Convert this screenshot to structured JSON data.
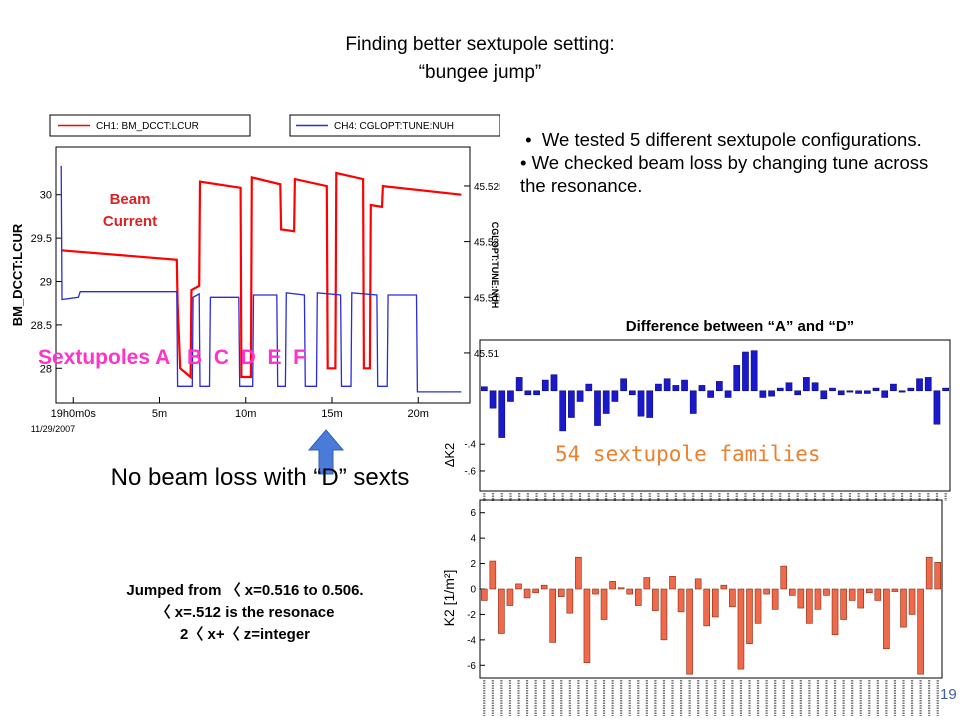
{
  "title_line1": "Finding better sextupole setting:",
  "title_line2": "“bungee jump”",
  "bullets": [
    "We tested 5 different sextupole configurations.",
    "We checked beam loss by changing tune across the resonance."
  ],
  "no_loss_text": "No beam loss with “D” sexts",
  "jump_lines": [
    "Jumped from 〈 x=0.516 to 0.506.",
    "〈 x=.512 is the resonace",
    "2〈 x+〈 z=integer"
  ],
  "sextupoles_label": "Sextupoles A   B  C  D  E  F",
  "families_label": "54 sextupole families",
  "diff_title": "Difference between “A” and “D”",
  "page_number": "19",
  "colors": {
    "ch1": "#ff0000",
    "ch4": "#2b2bd9",
    "bars_blue": "#1a1acc",
    "bars_orange": "#ee6a4a",
    "magenta": "#ff33cc",
    "orange_text": "#ee7f2d",
    "arrow": "#4a7bd8"
  },
  "chart_data": [
    {
      "type": "line",
      "legend": [
        "CH1: BM_DCCT:LCUR",
        "CH4: CGLOPT:TUNE:NUH"
      ],
      "ylabel_left": "BM_DCCT:LCUR",
      "ylabel_right": "CGLOPT:TUNE:NUH",
      "annotation": "Beam Current",
      "x_ticks": [
        "19h0m0s",
        "5m",
        "10m",
        "15m",
        "20m"
      ],
      "x_tick_minutes": [
        0,
        5,
        10,
        15,
        20
      ],
      "date_label": "11/29/2007",
      "xlim": [
        -1,
        23
      ],
      "y_left_ticks": [
        "30",
        "29.5",
        "29",
        "28.5",
        "28"
      ],
      "y_left_values": [
        30,
        29.5,
        29,
        28.5,
        28
      ],
      "ylim_left": [
        27.6,
        30.55
      ],
      "y_right_ticks": [
        "45.525",
        "45.52",
        "45.515",
        "45.51"
      ],
      "y_right_values": [
        45.525,
        45.52,
        45.515,
        45.51
      ],
      "ylim_right": [
        45.5055,
        45.5285
      ],
      "series": [
        {
          "name": "CH1: BM_DCCT:LCUR",
          "axis": "left",
          "points": [
            [
              -0.7,
              29.36
            ],
            [
              6.0,
              29.25
            ],
            [
              6.05,
              28.75
            ],
            [
              6.2,
              28.0
            ],
            [
              6.8,
              27.9
            ],
            [
              6.85,
              28.9
            ],
            [
              7.3,
              28.95
            ],
            [
              7.35,
              30.15
            ],
            [
              9.7,
              30.08
            ],
            [
              9.75,
              27.9
            ],
            [
              10.3,
              27.9
            ],
            [
              10.35,
              30.2
            ],
            [
              12.0,
              30.12
            ],
            [
              12.05,
              29.6
            ],
            [
              12.8,
              29.58
            ],
            [
              12.85,
              30.18
            ],
            [
              14.7,
              30.1
            ],
            [
              14.75,
              28.0
            ],
            [
              15.2,
              28.0
            ],
            [
              15.25,
              30.25
            ],
            [
              16.8,
              30.18
            ],
            [
              16.85,
              28.0
            ],
            [
              17.2,
              28.0
            ],
            [
              17.25,
              29.88
            ],
            [
              17.9,
              29.86
            ],
            [
              17.95,
              30.1
            ],
            [
              22.5,
              30.0
            ]
          ]
        },
        {
          "name": "CH4: CGLOPT:TUNE:NUH",
          "axis": "right",
          "points": [
            [
              -0.7,
              45.5268
            ],
            [
              -0.65,
              45.5148
            ],
            [
              0.3,
              45.515
            ],
            [
              0.4,
              45.5155
            ],
            [
              6.0,
              45.5155
            ],
            [
              6.05,
              45.507
            ],
            [
              6.9,
              45.507
            ],
            [
              6.95,
              45.515
            ],
            [
              7.3,
              45.5153
            ],
            [
              7.35,
              45.507
            ],
            [
              7.9,
              45.507
            ],
            [
              7.95,
              45.515
            ],
            [
              9.6,
              45.515
            ],
            [
              9.65,
              45.507
            ],
            [
              10.4,
              45.507
            ],
            [
              10.45,
              45.5152
            ],
            [
              11.8,
              45.5152
            ],
            [
              11.85,
              45.507
            ],
            [
              12.3,
              45.507
            ],
            [
              12.35,
              45.5154
            ],
            [
              13.4,
              45.5152
            ],
            [
              13.45,
              45.507
            ],
            [
              14.1,
              45.507
            ],
            [
              14.15,
              45.5154
            ],
            [
              15.5,
              45.5152
            ],
            [
              15.55,
              45.507
            ],
            [
              16.1,
              45.507
            ],
            [
              16.15,
              45.5154
            ],
            [
              17.6,
              45.5152
            ],
            [
              17.65,
              45.507
            ],
            [
              18.2,
              45.507
            ],
            [
              18.25,
              45.5152
            ],
            [
              19.9,
              45.5152
            ],
            [
              19.95,
              45.5065
            ],
            [
              22.5,
              45.5065
            ]
          ]
        }
      ]
    },
    {
      "type": "bar",
      "title": "Difference between “A” and “D”",
      "ylabel": "ΔK2",
      "y_ticks": [
        "-.4",
        "-.6"
      ],
      "y_tick_values": [
        -0.4,
        -0.6
      ],
      "ylim": [
        -0.75,
        0.38
      ],
      "values": [
        0.03,
        -0.13,
        -0.35,
        -0.08,
        0.1,
        -0.03,
        -0.03,
        0.08,
        0.12,
        -0.3,
        -0.2,
        -0.08,
        0.05,
        -0.26,
        -0.17,
        -0.08,
        0.09,
        -0.03,
        -0.19,
        -0.2,
        0.05,
        0.09,
        0.04,
        0.08,
        -0.17,
        0.04,
        -0.05,
        0.07,
        -0.05,
        0.19,
        0.29,
        0.3,
        -0.05,
        -0.04,
        0.02,
        0.06,
        -0.03,
        0.1,
        0.06,
        -0.06,
        0.02,
        -0.03,
        -0.01,
        -0.02,
        -0.02,
        0.02,
        -0.05,
        0.05,
        -0.01,
        0.02,
        0.09,
        0.1,
        -0.25,
        0.02
      ]
    },
    {
      "type": "bar",
      "ylabel": "K2 [1/m²]",
      "y_ticks": [
        "6",
        "4",
        "2",
        "0",
        "-2",
        "-4",
        "-6"
      ],
      "y_tick_values": [
        6,
        4,
        2,
        0,
        -2,
        -4,
        -6
      ],
      "ylim": [
        -7.0,
        7.0
      ],
      "values": [
        -0.9,
        2.2,
        -3.5,
        -1.3,
        0.4,
        -0.7,
        -0.3,
        0.3,
        -4.2,
        -0.6,
        -1.9,
        2.5,
        -5.8,
        -0.4,
        -2.4,
        0.6,
        0.1,
        -0.4,
        -1.3,
        0.9,
        -1.7,
        -4.0,
        1.0,
        -1.8,
        -6.7,
        0.8,
        -2.9,
        -2.2,
        0.3,
        -1.4,
        -6.3,
        -4.3,
        -2.7,
        -0.4,
        -1.6,
        1.8,
        -0.5,
        -1.5,
        -2.7,
        -1.6,
        -0.5,
        -3.6,
        -2.4,
        -0.9,
        -1.5,
        -0.3,
        -0.9,
        -4.7,
        -0.2,
        -3.0,
        -2.0,
        -6.7,
        2.5,
        2.1
      ]
    }
  ]
}
